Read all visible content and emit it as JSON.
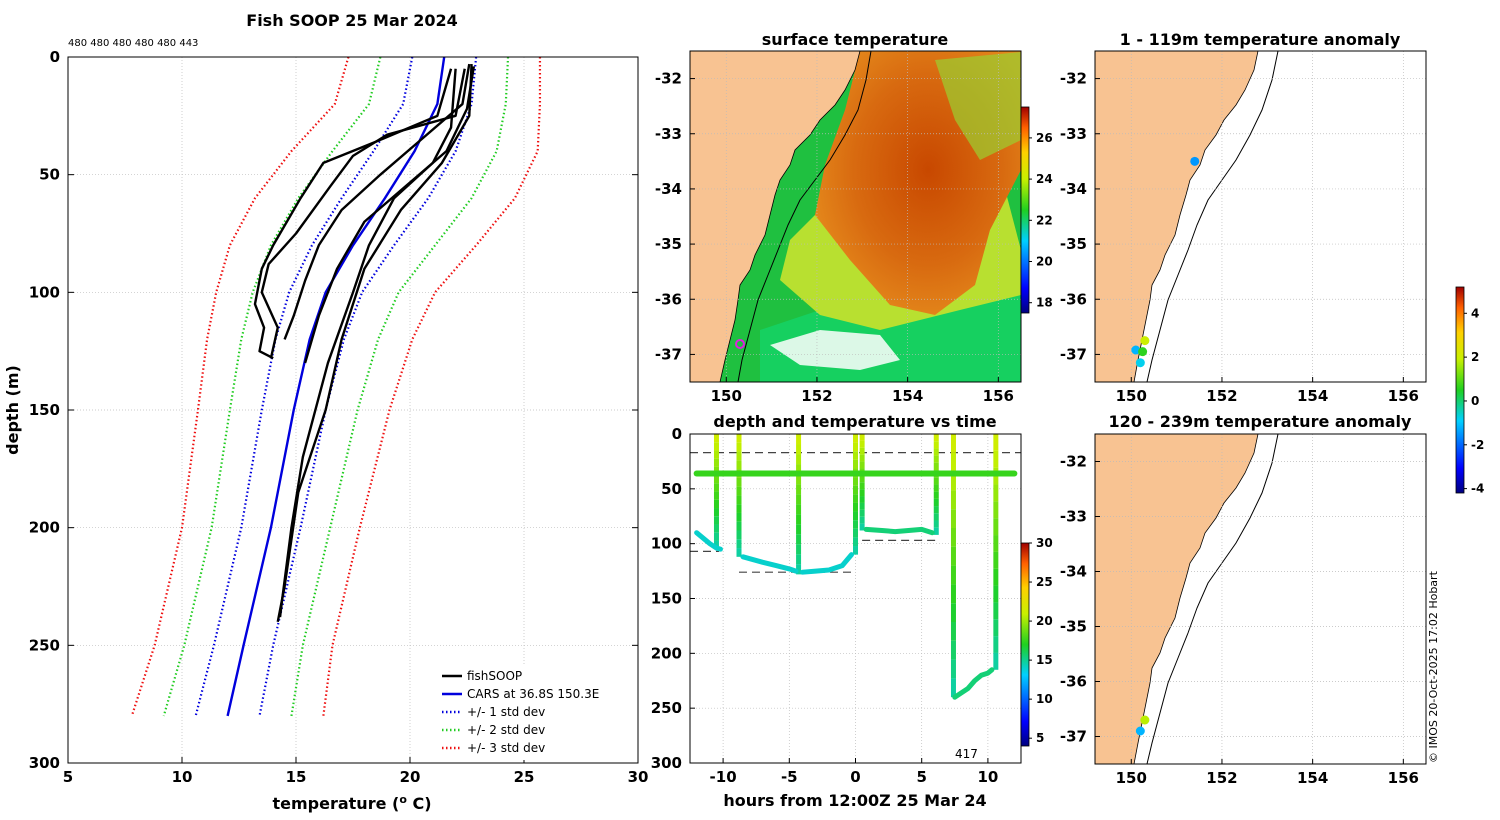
{
  "page": {
    "credit": "© IMOS 20-Oct-2025 17:02 Hobart"
  },
  "chart_data": [
    {
      "id": "profile",
      "type": "line",
      "title": "Fish SOOP 25 Mar 2024",
      "top_counts": "480 480 480 480 480 443",
      "xlabel": "temperature (o C)",
      "ylabel": "depth (m)",
      "xlim": [
        5,
        30
      ],
      "ylim": [
        0,
        300
      ],
      "xticks": [
        5,
        10,
        15,
        20,
        25,
        30
      ],
      "yticks": [
        0,
        50,
        100,
        150,
        200,
        250,
        300
      ],
      "legend": [
        {
          "label": "fishSOOP",
          "color": "#000000",
          "style": "solid"
        },
        {
          "label": "CARS at 36.8S 150.3E",
          "color": "#0000dd",
          "style": "solid"
        },
        {
          "label": "+/- 1 std dev",
          "color": "#0000dd",
          "style": "dotted"
        },
        {
          "label": "+/- 2 std dev",
          "color": "#22cc22",
          "style": "dotted"
        },
        {
          "label": "+/- 3 std dev",
          "color": "#ee1111",
          "style": "dotted"
        }
      ],
      "cars_depth": [
        0,
        20,
        40,
        60,
        80,
        100,
        120,
        150,
        200,
        250,
        280
      ],
      "cars_mean": [
        21.5,
        21.2,
        20.2,
        18.9,
        17.5,
        16.3,
        15.6,
        14.9,
        13.9,
        12.7,
        12.0
      ],
      "cars_std": [
        1.4,
        1.5,
        1.8,
        1.9,
        1.8,
        1.6,
        1.5,
        1.4,
        1.3,
        1.3,
        1.4
      ],
      "profiles": [
        {
          "depth": [
            5,
            25,
            36,
            45,
            60,
            80,
            90,
            105,
            115,
            125,
            128
          ],
          "temp": [
            21.8,
            21.2,
            18.5,
            16.2,
            15.2,
            14.0,
            13.5,
            13.2,
            13.6,
            13.4,
            14.0
          ]
        },
        {
          "depth": [
            5,
            25,
            33,
            42,
            55,
            75,
            88,
            100,
            115,
            128
          ],
          "temp": [
            22.4,
            22.0,
            19.0,
            17.5,
            16.5,
            15.0,
            13.8,
            13.5,
            14.2,
            13.9
          ]
        },
        {
          "depth": [
            3,
            20,
            35,
            50,
            65,
            80,
            95,
            110,
            120
          ],
          "temp": [
            22.6,
            22.3,
            20.5,
            18.7,
            17.0,
            16.0,
            15.4,
            14.9,
            14.5
          ]
        },
        {
          "depth": [
            4,
            22,
            40,
            55,
            70,
            90,
            110,
            130
          ],
          "temp": [
            22.8,
            22.5,
            21.6,
            19.8,
            18.0,
            16.8,
            16.0,
            15.4
          ]
        },
        {
          "depth": [
            5,
            30,
            45,
            60,
            80,
            100,
            130,
            170,
            200,
            230,
            238
          ],
          "temp": [
            22.0,
            21.8,
            21.0,
            19.3,
            18.2,
            17.5,
            16.4,
            15.3,
            14.8,
            14.4,
            14.3
          ]
        },
        {
          "depth": [
            3,
            25,
            45,
            65,
            90,
            120,
            150,
            185,
            225,
            240
          ],
          "temp": [
            22.7,
            22.6,
            21.4,
            19.6,
            18.0,
            17.0,
            16.3,
            15.1,
            14.5,
            14.2
          ]
        }
      ]
    },
    {
      "id": "sst",
      "type": "heatmap",
      "title": "surface temperature",
      "xlim": [
        149.2,
        156.5
      ],
      "ylim": [
        -37.5,
        -31.5
      ],
      "xticks": [
        150,
        152,
        154,
        156
      ],
      "yticks": [
        -32,
        -33,
        -34,
        -35,
        -36,
        -37
      ],
      "clim": [
        17.5,
        27.5
      ],
      "cticks": [
        18,
        20,
        22,
        24,
        26
      ]
    },
    {
      "id": "timeseries",
      "type": "scatter",
      "title": "depth and temperature vs time",
      "xlabel": "hours from 12:00Z 25 Mar 24",
      "xlim": [
        -12.5,
        12.5
      ],
      "ylim": [
        0,
        300
      ],
      "xticks": [
        -10,
        -5,
        0,
        5,
        10
      ],
      "yticks": [
        0,
        50,
        100,
        150,
        200,
        250,
        300
      ],
      "clim": [
        4,
        30
      ],
      "cticks": [
        5,
        10,
        15,
        20,
        25,
        30
      ],
      "count_label": "417",
      "dashed_levels": [
        {
          "depth": 17,
          "x": [
            -12.5,
            12.5
          ]
        },
        {
          "depth": 107,
          "x": [
            -12.5,
            -10.3
          ]
        },
        {
          "depth": 126,
          "x": [
            -8.8,
            0
          ]
        },
        {
          "depth": 97,
          "x": [
            0.5,
            6.1
          ]
        }
      ],
      "tow_line": {
        "depth": 36,
        "x": [
          -12.0,
          12.0
        ],
        "temp": 17.5
      },
      "casts": [
        {
          "time": [
            -12.0,
            -11.5,
            -11.0,
            -10.5,
            -10.2
          ],
          "depth": [
            90,
            95,
            100,
            104,
            105
          ],
          "temp": 14
        },
        {
          "time": [
            -8.5,
            -7,
            -6,
            -5,
            -4.5
          ],
          "depth": [
            112,
            117,
            120,
            123,
            125
          ],
          "temp": 14
        },
        {
          "time": [
            -4,
            -3,
            -2,
            -1,
            -0.3
          ],
          "depth": [
            126,
            125,
            124,
            120,
            110
          ],
          "temp": 14
        },
        {
          "time": [
            0.8,
            2,
            3,
            4,
            5,
            5.8
          ],
          "depth": [
            87,
            88,
            89,
            88,
            87,
            90
          ],
          "temp": 15.5
        },
        {
          "time": [
            7.5,
            8,
            8.5,
            9,
            9.5,
            10,
            10.3
          ],
          "depth": [
            240,
            236,
            232,
            225,
            220,
            218,
            215
          ],
          "temp": 15.5
        }
      ],
      "spikes": [
        {
          "time": -10.5,
          "bottom": 105
        },
        {
          "time": -8.8,
          "bottom": 112
        },
        {
          "time": -4.3,
          "bottom": 128
        },
        {
          "time": 0,
          "bottom": 110
        },
        {
          "time": 0.5,
          "bottom": 88
        },
        {
          "time": 6.1,
          "bottom": 92
        },
        {
          "time": 7.4,
          "bottom": 240
        },
        {
          "time": 10.6,
          "bottom": 215
        }
      ]
    },
    {
      "id": "anom_shallow",
      "type": "scatter",
      "title": "1 - 119m temperature anomaly",
      "xlim": [
        149.2,
        156.5
      ],
      "ylim": [
        -37.5,
        -31.5
      ],
      "xticks": [
        150,
        152,
        154,
        156
      ],
      "yticks": [
        -32,
        -33,
        -34,
        -35,
        -36,
        -37
      ],
      "points": [
        {
          "lon": 151.4,
          "lat": -33.5,
          "anom": -1.5
        },
        {
          "lon": 150.3,
          "lat": -36.75,
          "anom": 2.0
        },
        {
          "lon": 150.1,
          "lat": -36.92,
          "anom": -1.2
        },
        {
          "lon": 150.25,
          "lat": -36.95,
          "anom": 0.6
        },
        {
          "lon": 150.2,
          "lat": -37.15,
          "anom": -0.8
        }
      ]
    },
    {
      "id": "anom_deep",
      "type": "scatter",
      "title": "120 - 239m temperature anomaly",
      "xlim": [
        149.2,
        156.5
      ],
      "ylim": [
        -37.5,
        -31.5
      ],
      "xticks": [
        150,
        152,
        154,
        156
      ],
      "yticks": [
        -32,
        -33,
        -34,
        -35,
        -36,
        -37
      ],
      "clim": [
        -4.2,
        5.2
      ],
      "cticks": [
        -4,
        -2,
        0,
        2,
        4
      ],
      "points": [
        {
          "lon": 150.3,
          "lat": -36.7,
          "anom": 1.8
        },
        {
          "lon": 150.2,
          "lat": -36.9,
          "anom": -1.2
        }
      ]
    }
  ]
}
